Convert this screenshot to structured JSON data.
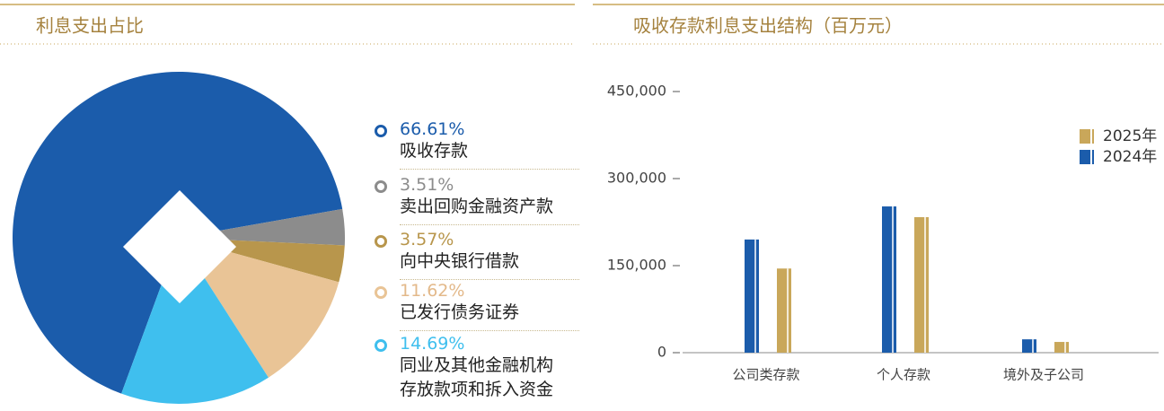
{
  "chart_data": [
    {
      "type": "pie",
      "title": "利息支出占比",
      "categories": [
        "吸收存款",
        "卖出回购金融资产款",
        "向中央银行借款",
        "已发行债务证券",
        "同业及其他金融机构存放款项和拆入资金"
      ],
      "values": [
        66.61,
        3.51,
        3.57,
        11.62,
        14.69
      ],
      "value_labels": [
        "66.61%",
        "3.51%",
        "3.57%",
        "11.62%",
        "14.69%"
      ],
      "colors": [
        "#1b5cab",
        "#8c8c8c",
        "#b8964c",
        "#e9c496",
        "#3fbfee"
      ],
      "label_colors": [
        "#1b5cab",
        "#8c8c8c",
        "#b8964c",
        "#e3b98a",
        "#3fbfee"
      ]
    },
    {
      "type": "bar",
      "title": "吸收存款利息支出结构（百万元）",
      "categories": [
        "公司类存款",
        "个人存款",
        "境外及子公司"
      ],
      "series": [
        {
          "name": "2024年",
          "color": "#1b5cab",
          "values": [
            195000,
            252000,
            23000
          ]
        },
        {
          "name": "2025年",
          "color": "#c9a75a",
          "values": [
            145000,
            233500,
            18500
          ]
        }
      ],
      "ylim": [
        0,
        450000
      ],
      "yticks": [
        0,
        {
          "value": 150000,
          "label": "150,000"
        },
        {
          "value": 300000,
          "label": "300,000"
        },
        {
          "value": 450000,
          "label": "450,000"
        }
      ]
    }
  ]
}
